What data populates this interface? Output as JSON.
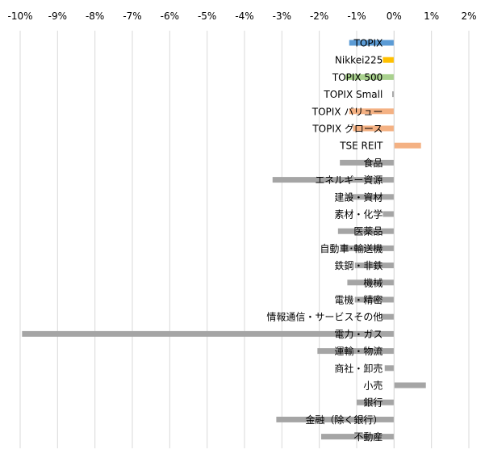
{
  "chart_data": {
    "type": "bar",
    "orientation": "horizontal",
    "title": "",
    "xlabel": "",
    "ylabel": "",
    "xlim": [
      -10,
      2
    ],
    "grid": true,
    "legend": "none",
    "x_ticks": [
      {
        "value": -10,
        "label": "-10%"
      },
      {
        "value": -9,
        "label": "-9%"
      },
      {
        "value": -8,
        "label": "-8%"
      },
      {
        "value": -7,
        "label": "-7%"
      },
      {
        "value": -6,
        "label": "-6%"
      },
      {
        "value": -5,
        "label": "-5%"
      },
      {
        "value": -4,
        "label": "-4%"
      },
      {
        "value": -3,
        "label": "-3%"
      },
      {
        "value": -2,
        "label": "-2%"
      },
      {
        "value": -1,
        "label": "-1%"
      },
      {
        "value": 0,
        "label": "0%"
      },
      {
        "value": 1,
        "label": "1%"
      },
      {
        "value": 2,
        "label": "2%"
      }
    ],
    "categories": [
      "TOPIX",
      "Nikkei225",
      "TOPIX 500",
      "TOPIX Small",
      "TOPIX バリュー",
      "TOPIX グロース",
      "TSE REIT",
      "食品",
      "エネルギー資源",
      "建設・資材",
      "素材・化学",
      "医薬品",
      "自動車･輸送機",
      "鉄鋼・非鉄",
      "機械",
      "電機・精密",
      "情報通信・サービスその他",
      "電力・ガス",
      "運輸・物流",
      "商社・卸売",
      "小売",
      "銀行",
      "金融（除く銀行）",
      "不動産"
    ],
    "values": [
      -1.2,
      -0.3,
      -1.3,
      -0.05,
      -1.2,
      -1.1,
      0.72,
      -1.45,
      -3.25,
      -1.25,
      -0.3,
      -1.5,
      -1.4,
      -1.05,
      -1.25,
      -1.05,
      -0.35,
      -9.95,
      -2.05,
      -0.25,
      0.85,
      -1.0,
      -3.15,
      -1.95
    ],
    "colors": [
      "#5b9bd5",
      "#ffc000",
      "#a9d18e",
      "#a5a5a5",
      "#f4b183",
      "#f4b183",
      "#f4b183",
      "#a5a5a5",
      "#a5a5a5",
      "#a5a5a5",
      "#a5a5a5",
      "#a5a5a5",
      "#a5a5a5",
      "#a5a5a5",
      "#a5a5a5",
      "#a5a5a5",
      "#a5a5a5",
      "#a5a5a5",
      "#a5a5a5",
      "#a5a5a5",
      "#a5a5a5",
      "#a5a5a5",
      "#a5a5a5",
      "#a5a5a5"
    ],
    "gridline_color": "#d9d9d9",
    "axis_text_color": "#000000"
  }
}
